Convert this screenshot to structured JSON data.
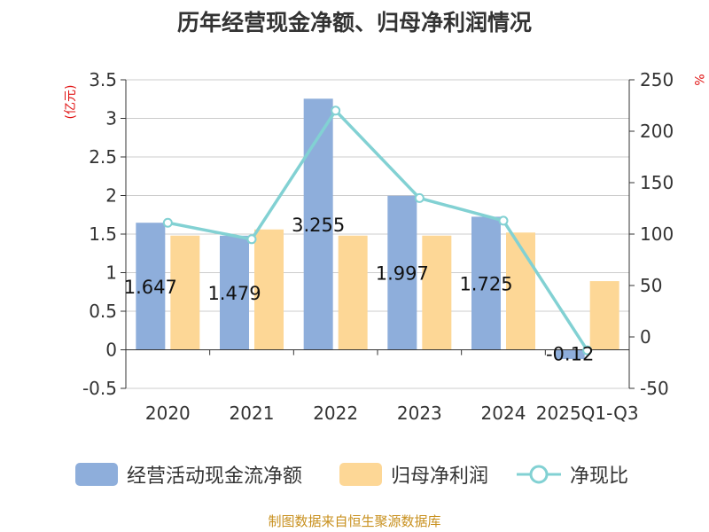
{
  "title": "历年经营现金净额、归母净利润情况",
  "source_note": "制图数据来自恒生聚源数据库",
  "chart_data": {
    "type": "bar",
    "categories": [
      "2020",
      "2021",
      "2022",
      "2023",
      "2024",
      "2025Q1-Q3"
    ],
    "series": [
      {
        "name": "经营活动现金流净额",
        "type": "bar",
        "axis": "left",
        "color": "#8eaedb",
        "values": [
          1.647,
          1.479,
          3.255,
          1.997,
          1.725,
          -0.12
        ],
        "labels": [
          "1.647",
          "1.479",
          "3.255",
          "1.997",
          "1.725",
          "-0.12"
        ]
      },
      {
        "name": "归母净利润",
        "type": "bar",
        "axis": "left",
        "color": "#fdd796",
        "values": [
          1.48,
          1.56,
          1.48,
          1.48,
          1.52,
          0.89
        ]
      },
      {
        "name": "净现比",
        "type": "line",
        "axis": "right",
        "color": "#82d1d3",
        "values": [
          111,
          95,
          220,
          135,
          113,
          -13
        ]
      }
    ],
    "y_left": {
      "unit": "(亿元)",
      "ylim": [
        -0.5,
        3.5
      ],
      "ticks": [
        "3.5",
        "3",
        "2.5",
        "2",
        "1.5",
        "1",
        "0.5",
        "0",
        "-0.5"
      ]
    },
    "y_right": {
      "unit": "%",
      "ylim": [
        -50,
        250
      ],
      "ticks": [
        "250",
        "200",
        "150",
        "100",
        "50",
        "0",
        "-50"
      ]
    },
    "grid": true,
    "legend_position": "bottom"
  }
}
